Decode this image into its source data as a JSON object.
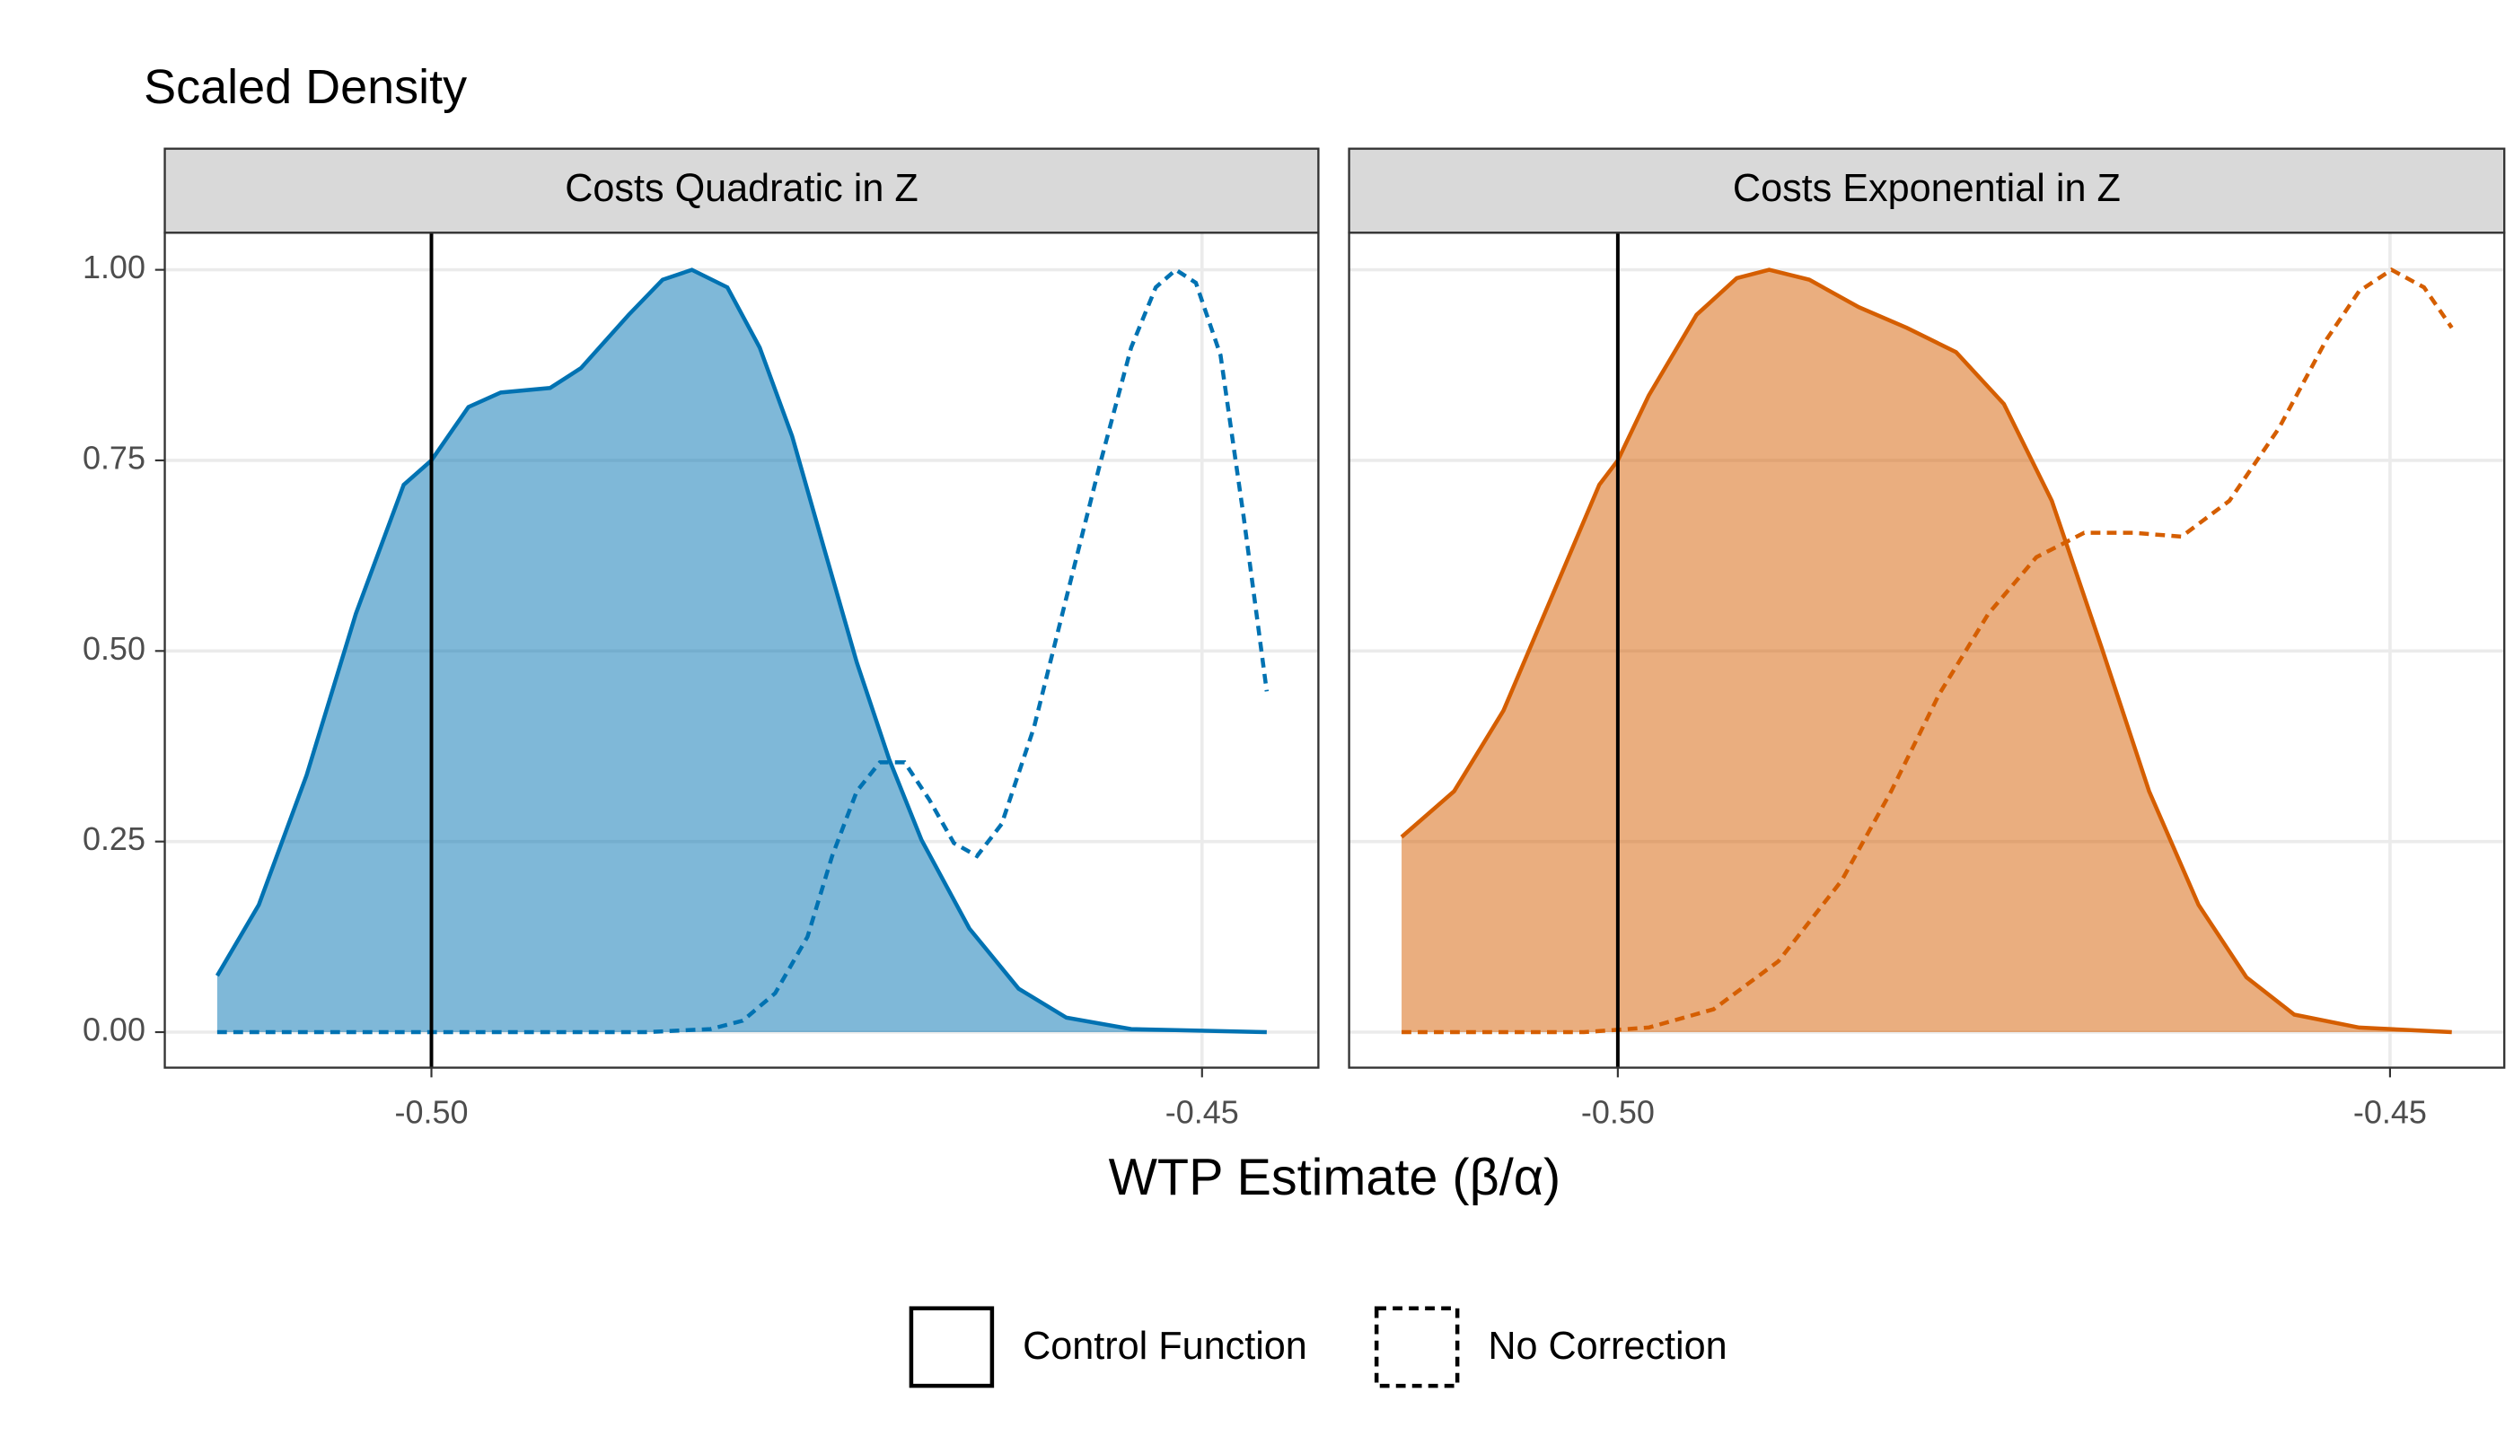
{
  "figure": {
    "y_label": "Scaled Density",
    "x_label": "WTP Estimate (β/α)",
    "legend": [
      {
        "label": "Control Function",
        "linestyle": "solid"
      },
      {
        "label": "No Correction",
        "linestyle": "dashed"
      }
    ]
  },
  "chart_data": [
    {
      "type": "density",
      "title": "Costs Quadratic in Z",
      "grid": true,
      "xlim": [
        -0.5173,
        -0.44245
      ],
      "ylim": [
        -0.0466,
        1.0487
      ],
      "vline": -0.5,
      "xticks": [
        {
          "value": -0.5,
          "label": "-0.50"
        },
        {
          "value": -0.45,
          "label": "-0.45"
        }
      ],
      "yticks": [
        {
          "value": 0,
          "label": "0.00"
        },
        {
          "value": 0.25,
          "label": "0.25"
        },
        {
          "value": 0.5,
          "label": "0.50"
        },
        {
          "value": 0.75,
          "label": "0.75"
        },
        {
          "value": 1,
          "label": "1.00"
        }
      ],
      "series": [
        {
          "linestyle": "solid",
          "fill": true,
          "color": "#0072B2",
          "x": [
            -0.5139,
            -0.5112,
            -0.5081,
            -0.5049,
            -0.5018,
            -0.5,
            -0.4976,
            -0.4955,
            -0.4923,
            -0.4903,
            -0.4872,
            -0.485,
            -0.4831,
            -0.4808,
            -0.4787,
            -0.4766,
            -0.4745,
            -0.4724,
            -0.4703,
            -0.4682,
            -0.4651,
            -0.4619,
            -0.4588,
            -0.4546,
            -0.4458
          ],
          "values": [
            0.074,
            0.167,
            0.337,
            0.549,
            0.718,
            0.75,
            0.82,
            0.839,
            0.845,
            0.871,
            0.941,
            0.987,
            1.0,
            0.977,
            0.898,
            0.782,
            0.633,
            0.485,
            0.358,
            0.252,
            0.136,
            0.057,
            0.019,
            0.004,
            0
          ]
        },
        {
          "linestyle": "dashed",
          "fill": false,
          "color": "#0072B2",
          "x": [
            -0.5139,
            -0.4861,
            -0.4819,
            -0.4798,
            -0.4777,
            -0.4756,
            -0.474,
            -0.4724,
            -0.4709,
            -0.4693,
            -0.4677,
            -0.4661,
            -0.4646,
            -0.463,
            -0.4609,
            -0.4588,
            -0.4567,
            -0.4546,
            -0.453,
            -0.4517,
            -0.4504,
            -0.4488,
            -0.4473,
            -0.4458
          ],
          "values": [
            0,
            0,
            0.004,
            0.015,
            0.051,
            0.125,
            0.231,
            0.316,
            0.354,
            0.354,
            0.305,
            0.248,
            0.231,
            0.273,
            0.4,
            0.57,
            0.739,
            0.898,
            0.977,
            1.0,
            0.983,
            0.888,
            0.676,
            0.447
          ]
        }
      ]
    },
    {
      "type": "density",
      "title": "Costs Exponential in Z",
      "grid": true,
      "xlim": [
        -0.5174,
        -0.4426
      ],
      "ylim": [
        -0.0466,
        1.0487
      ],
      "vline": -0.5,
      "xticks": [
        {
          "value": -0.5,
          "label": "-0.50"
        },
        {
          "value": -0.45,
          "label": "-0.45"
        }
      ],
      "yticks": [
        0,
        0.25,
        0.5,
        0.75,
        1
      ],
      "series": [
        {
          "linestyle": "solid",
          "fill": true,
          "color": "#D55E00",
          "x": [
            -0.514,
            -0.5106,
            -0.5074,
            -0.5043,
            -0.5012,
            -0.5,
            -0.498,
            -0.4949,
            -0.4923,
            -0.4902,
            -0.4876,
            -0.4844,
            -0.4813,
            -0.4781,
            -0.475,
            -0.4719,
            -0.4687,
            -0.4656,
            -0.4624,
            -0.4593,
            -0.4562,
            -0.452,
            -0.446
          ],
          "values": [
            0.256,
            0.316,
            0.422,
            0.57,
            0.718,
            0.75,
            0.835,
            0.941,
            0.989,
            1.0,
            0.987,
            0.951,
            0.924,
            0.892,
            0.824,
            0.697,
            0.506,
            0.316,
            0.167,
            0.072,
            0.023,
            0.006,
            0
          ]
        },
        {
          "linestyle": "dashed",
          "fill": false,
          "color": "#D55E00",
          "x": [
            -0.514,
            -0.5022,
            -0.498,
            -0.4938,
            -0.4896,
            -0.4855,
            -0.4823,
            -0.4792,
            -0.476,
            -0.4729,
            -0.4698,
            -0.4666,
            -0.4635,
            -0.4604,
            -0.4572,
            -0.4541,
            -0.452,
            -0.4499,
            -0.4478,
            -0.446
          ],
          "values": [
            0,
            0,
            0.006,
            0.03,
            0.093,
            0.199,
            0.316,
            0.443,
            0.549,
            0.623,
            0.655,
            0.655,
            0.65,
            0.697,
            0.792,
            0.909,
            0.972,
            1.0,
            0.977,
            0.924
          ]
        }
      ]
    }
  ]
}
